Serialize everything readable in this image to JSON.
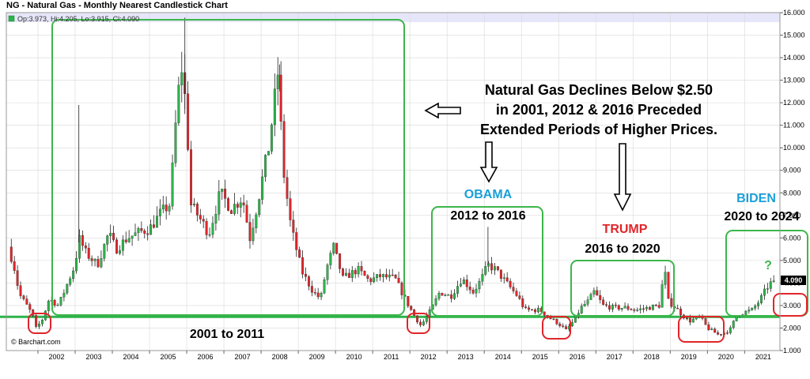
{
  "header": {
    "title": "NG - Natural Gas - Monthly Nearest Candlestick Chart",
    "ohlc": "Op:3.973, Hi:4.205, Lo:3.915, Cl:4.090"
  },
  "credit": "© Barchart.com",
  "annotations": {
    "note_lines": [
      "Natural Gas Declines Below $2.50",
      "in 2001, 2012 & 2016 Preceded",
      "Extended Periods of Higher Prices."
    ],
    "period_2001": "2001 to 2011",
    "obama_name": "OBAMA",
    "obama_period": "2012 to 2016",
    "trump_name": "TRUMP",
    "trump_period": "2016 to 2020",
    "biden_name": "BIDEN",
    "biden_period": "2020 to 2024",
    "question": "?",
    "last_price": "4.090"
  },
  "colors": {
    "up": "#2db34a",
    "down": "#e0252a",
    "support_line": "#2db34a",
    "box_green": "#3cb64a",
    "box_red": "#e0252a",
    "top_band": "#e6e6fa",
    "grid": "#d8d8d8"
  },
  "chart_data": {
    "type": "candlestick",
    "title": "NG - Natural Gas - Monthly Nearest Candlestick Chart",
    "x_tick_labels": [
      "2002",
      "2003",
      "2004",
      "2005",
      "2006",
      "2007",
      "2008",
      "2009",
      "2010",
      "2011",
      "2012",
      "2013",
      "2014",
      "2015",
      "2016",
      "2017",
      "2018",
      "2019",
      "2020",
      "2021"
    ],
    "y_tick_labels": [
      "1.000",
      "2.000",
      "3.000",
      "4.000",
      "5.000",
      "6.000",
      "7.000",
      "8.000",
      "9.000",
      "10.000",
      "11.000",
      "12.000",
      "13.000",
      "14.000",
      "15.000",
      "16.000"
    ],
    "ylim": [
      1,
      16
    ],
    "xlim": [
      2001.15,
      2021.95
    ],
    "y_axis_position": "right",
    "support_level": 2.5,
    "last_close": 4.09,
    "anchors": [
      [
        2001.2,
        5.6
      ],
      [
        2001.35,
        4.8
      ],
      [
        2001.5,
        3.5
      ],
      [
        2001.7,
        3.0
      ],
      [
        2001.85,
        2.6
      ],
      [
        2001.95,
        2.0
      ],
      [
        2002.1,
        2.3
      ],
      [
        2002.3,
        3.3
      ],
      [
        2002.55,
        3.0
      ],
      [
        2002.75,
        3.8
      ],
      [
        2003.0,
        4.8
      ],
      [
        2003.1,
        6.0
      ],
      [
        2003.3,
        5.3
      ],
      [
        2003.6,
        4.8
      ],
      [
        2003.9,
        6.2
      ],
      [
        2004.1,
        5.5
      ],
      [
        2004.4,
        6.0
      ],
      [
        2004.8,
        6.3
      ],
      [
        2005.0,
        6.4
      ],
      [
        2005.3,
        7.1
      ],
      [
        2005.55,
        7.5
      ],
      [
        2005.7,
        11.0
      ],
      [
        2005.85,
        13.8
      ],
      [
        2006.0,
        11.5
      ],
      [
        2006.1,
        7.5
      ],
      [
        2006.3,
        7.0
      ],
      [
        2006.6,
        6.2
      ],
      [
        2006.9,
        8.0
      ],
      [
        2007.2,
        7.3
      ],
      [
        2007.5,
        7.8
      ],
      [
        2007.7,
        6.0
      ],
      [
        2007.9,
        7.5
      ],
      [
        2008.2,
        10.0
      ],
      [
        2008.45,
        13.3
      ],
      [
        2008.6,
        9.0
      ],
      [
        2008.8,
        6.5
      ],
      [
        2009.1,
        4.5
      ],
      [
        2009.4,
        3.6
      ],
      [
        2009.6,
        3.3
      ],
      [
        2009.75,
        4.6
      ],
      [
        2009.95,
        5.6
      ],
      [
        2010.2,
        4.2
      ],
      [
        2010.6,
        4.6
      ],
      [
        2010.9,
        4.1
      ],
      [
        2011.2,
        4.3
      ],
      [
        2011.6,
        4.2
      ],
      [
        2011.9,
        3.2
      ],
      [
        2012.1,
        2.6
      ],
      [
        2012.3,
        2.1
      ],
      [
        2012.6,
        2.9
      ],
      [
        2012.8,
        3.6
      ],
      [
        2013.1,
        3.4
      ],
      [
        2013.4,
        4.2
      ],
      [
        2013.7,
        3.6
      ],
      [
        2013.9,
        4.1
      ],
      [
        2014.1,
        4.8
      ],
      [
        2014.3,
        4.6
      ],
      [
        2014.6,
        4.0
      ],
      [
        2014.9,
        3.4
      ],
      [
        2015.1,
        2.8
      ],
      [
        2015.5,
        2.8
      ],
      [
        2015.8,
        2.4
      ],
      [
        2016.0,
        2.2
      ],
      [
        2016.2,
        1.9
      ],
      [
        2016.4,
        2.3
      ],
      [
        2016.6,
        2.9
      ],
      [
        2016.8,
        3.2
      ],
      [
        2016.95,
        3.6
      ],
      [
        2017.2,
        3.0
      ],
      [
        2017.5,
        2.9
      ],
      [
        2017.8,
        2.9
      ],
      [
        2018.1,
        2.8
      ],
      [
        2018.4,
        2.9
      ],
      [
        2018.7,
        3.0
      ],
      [
        2018.85,
        4.6
      ],
      [
        2018.95,
        3.2
      ],
      [
        2019.2,
        2.8
      ],
      [
        2019.5,
        2.3
      ],
      [
        2019.8,
        2.5
      ],
      [
        2020.0,
        2.0
      ],
      [
        2020.3,
        1.7
      ],
      [
        2020.6,
        1.9
      ],
      [
        2020.8,
        2.6
      ],
      [
        2021.0,
        2.7
      ],
      [
        2021.2,
        2.8
      ],
      [
        2021.4,
        3.2
      ],
      [
        2021.6,
        3.8
      ],
      [
        2021.75,
        4.09
      ]
    ]
  }
}
